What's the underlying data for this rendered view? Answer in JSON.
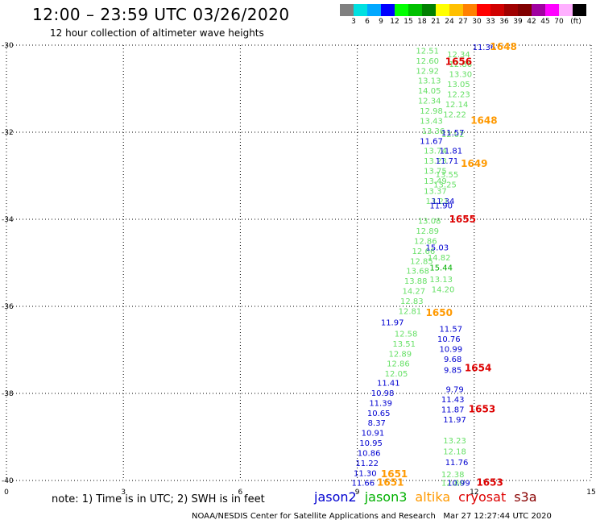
{
  "header": {
    "title": "12:00 – 23:59 UTC 03/26/2020",
    "subtitle": "12 hour collection of altimeter wave heights"
  },
  "colorbar": {
    "colors": [
      "#808080",
      "#00e0e0",
      "#00a8ff",
      "#0000ff",
      "#00ff00",
      "#00c000",
      "#008000",
      "#ffff00",
      "#ffc000",
      "#ff8000",
      "#ff0000",
      "#d00000",
      "#a00000",
      "#800000",
      "#a000a0",
      "#ff00ff",
      "#ffb0ff",
      "#000000"
    ],
    "labels": [
      "3",
      "6",
      "9",
      "12",
      "15",
      "18",
      "21",
      "24",
      "27",
      "30",
      "33",
      "36",
      "39",
      "42",
      "45",
      "70",
      "(ft)"
    ]
  },
  "chart_data": {
    "type": "scatter",
    "title": "12:00 – 23:59 UTC 03/26/2020",
    "subtitle": "12 hour collection of altimeter wave heights",
    "xlim": [
      0,
      15
    ],
    "ylim": [
      -40,
      -30
    ],
    "x_ticks": [
      0,
      3,
      6,
      9,
      12,
      15
    ],
    "y_ticks": [
      -30,
      -32,
      -34,
      -36,
      -38,
      -40
    ],
    "x_tick_labels": [
      "0",
      "3",
      "6",
      "9",
      "12",
      "15"
    ],
    "y_tick_labels": [
      "-30",
      "-32",
      "-34",
      "-36",
      "-38",
      "-40"
    ],
    "grid": true,
    "satellite_colors": {
      "jason2": "#0000d0",
      "jason3": "#00b000",
      "altika": "#ff9900",
      "cryosat": "#dd0000",
      "s3a": "#880000",
      "jason3_light": "#66e066",
      "jason3_cyan": "#00a0e0"
    },
    "series": [
      {
        "name": "jason3",
        "points": [
          {
            "x": 10.8,
            "y": -30.12,
            "v": "12.51"
          },
          {
            "x": 10.8,
            "y": -30.35,
            "v": "12.60"
          },
          {
            "x": 10.8,
            "y": -30.58,
            "v": "12.92"
          },
          {
            "x": 10.85,
            "y": -30.81,
            "v": "13.13"
          },
          {
            "x": 10.85,
            "y": -31.04,
            "v": "14.05"
          },
          {
            "x": 10.85,
            "y": -31.27,
            "v": "12.34"
          },
          {
            "x": 10.9,
            "y": -31.5,
            "v": "12.98"
          },
          {
            "x": 10.9,
            "y": -31.73,
            "v": "13.43"
          },
          {
            "x": 10.95,
            "y": -31.96,
            "v": "13.36"
          },
          {
            "x": 11.0,
            "y": -32.42,
            "v": "13.74"
          },
          {
            "x": 11.0,
            "y": -32.65,
            "v": "13.23"
          },
          {
            "x": 11.0,
            "y": -32.88,
            "v": "13.75"
          },
          {
            "x": 11.0,
            "y": -33.11,
            "v": "13.49"
          },
          {
            "x": 11.0,
            "y": -33.34,
            "v": "13.37"
          },
          {
            "x": 11.05,
            "y": -33.57,
            "v": "13.21"
          },
          {
            "x": 10.85,
            "y": -34.03,
            "v": "13.08"
          },
          {
            "x": 10.8,
            "y": -34.26,
            "v": "12.89"
          },
          {
            "x": 10.75,
            "y": -34.49,
            "v": "12.86"
          },
          {
            "x": 10.7,
            "y": -34.72,
            "v": "12.66"
          },
          {
            "x": 10.65,
            "y": -34.95,
            "v": "12.85"
          },
          {
            "x": 10.55,
            "y": -35.18,
            "v": "13.68"
          },
          {
            "x": 10.5,
            "y": -35.41,
            "v": "13.88"
          },
          {
            "x": 10.45,
            "y": -35.64,
            "v": "14.27"
          },
          {
            "x": 10.4,
            "y": -35.87,
            "v": "12.83"
          },
          {
            "x": 10.35,
            "y": -36.1,
            "v": "12.81"
          },
          {
            "x": 10.25,
            "y": -36.62,
            "v": "12.58"
          },
          {
            "x": 10.2,
            "y": -36.85,
            "v": "13.51"
          },
          {
            "x": 10.1,
            "y": -37.08,
            "v": "12.89"
          },
          {
            "x": 10.05,
            "y": -37.31,
            "v": "12.86"
          },
          {
            "x": 10.0,
            "y": -37.54,
            "v": "12.05"
          },
          {
            "x": 11.6,
            "y": -30.2,
            "v": "12.34"
          },
          {
            "x": 11.65,
            "y": -30.43,
            "v": "12.86"
          },
          {
            "x": 11.65,
            "y": -30.66,
            "v": "13.30"
          },
          {
            "x": 11.6,
            "y": -30.89,
            "v": "13.05"
          },
          {
            "x": 11.6,
            "y": -31.12,
            "v": "12.23"
          },
          {
            "x": 11.55,
            "y": -31.35,
            "v": "12.14"
          },
          {
            "x": 11.5,
            "y": -31.58,
            "v": "12.22"
          },
          {
            "x": 11.45,
            "y": -32.04,
            "v": "12.02"
          },
          {
            "x": 11.3,
            "y": -32.96,
            "v": "13.55"
          },
          {
            "x": 11.25,
            "y": -33.19,
            "v": "13.25"
          },
          {
            "x": 11.1,
            "y": -34.87,
            "v": "14.82"
          },
          {
            "x": 11.15,
            "y": -35.1,
            "v": "15.44"
          },
          {
            "x": 11.15,
            "y": -35.37,
            "v": "13.13"
          },
          {
            "x": 11.2,
            "y": -35.6,
            "v": "14.20"
          },
          {
            "x": 11.5,
            "y": -39.07,
            "v": "13.23"
          },
          {
            "x": 11.5,
            "y": -39.32,
            "v": "12.18"
          },
          {
            "x": 11.45,
            "y": -39.85,
            "v": "12.38"
          },
          {
            "x": 11.45,
            "y": -40.05,
            "v": "12.80"
          }
        ]
      },
      {
        "name": "jason2",
        "points": [
          {
            "x": 12.25,
            "y": -30.04,
            "v": "11.36"
          },
          {
            "x": 10.9,
            "y": -32.19,
            "v": "11.67"
          },
          {
            "x": 11.45,
            "y": -32.0,
            "v": "11.57"
          },
          {
            "x": 11.4,
            "y": -32.42,
            "v": "11.81"
          },
          {
            "x": 11.3,
            "y": -32.65,
            "v": "11.71"
          },
          {
            "x": 11.2,
            "y": -33.57,
            "v": "11.34"
          },
          {
            "x": 11.15,
            "y": -33.68,
            "v": "11.90"
          },
          {
            "x": 11.05,
            "y": -34.64,
            "v": "15.03"
          },
          {
            "x": 9.9,
            "y": -36.36,
            "v": "11.97"
          },
          {
            "x": 11.4,
            "y": -36.51,
            "v": "11.57"
          },
          {
            "x": 11.35,
            "y": -36.74,
            "v": "10.76"
          },
          {
            "x": 11.4,
            "y": -36.97,
            "v": "10.99"
          },
          {
            "x": 11.45,
            "y": -37.2,
            "v": "9.68"
          },
          {
            "x": 11.45,
            "y": -37.45,
            "v": "9.85"
          },
          {
            "x": 11.5,
            "y": -37.9,
            "v": "9.79"
          },
          {
            "x": 11.45,
            "y": -38.13,
            "v": "11.43"
          },
          {
            "x": 11.45,
            "y": -38.36,
            "v": "11.87"
          },
          {
            "x": 11.5,
            "y": -38.59,
            "v": "11.97"
          },
          {
            "x": 11.55,
            "y": -39.57,
            "v": "11.76"
          },
          {
            "x": 11.6,
            "y": -40.05,
            "v": "10.99"
          },
          {
            "x": 9.8,
            "y": -37.75,
            "v": "11.41"
          },
          {
            "x": 9.65,
            "y": -37.98,
            "v": "10.98"
          },
          {
            "x": 9.6,
            "y": -38.21,
            "v": "11.39"
          },
          {
            "x": 9.55,
            "y": -38.44,
            "v": "10.65"
          },
          {
            "x": 9.5,
            "y": -38.67,
            "v": "8.37"
          },
          {
            "x": 9.4,
            "y": -38.9,
            "v": "10.91"
          },
          {
            "x": 9.35,
            "y": -39.13,
            "v": "10.95"
          },
          {
            "x": 9.3,
            "y": -39.36,
            "v": "10.86"
          },
          {
            "x": 9.25,
            "y": -39.59,
            "v": "11.22"
          },
          {
            "x": 9.2,
            "y": -39.82,
            "v": "11.30"
          },
          {
            "x": 9.15,
            "y": -40.05,
            "v": "11.66"
          }
        ]
      },
      {
        "name": "altika",
        "points": [
          {
            "x": 12.75,
            "y": -30.04,
            "v": "1648"
          },
          {
            "x": 12.25,
            "y": -31.73,
            "v": "1648"
          },
          {
            "x": 12.0,
            "y": -32.72,
            "v": "1649"
          },
          {
            "x": 11.1,
            "y": -36.15,
            "v": "1650"
          },
          {
            "x": 9.95,
            "y": -39.85,
            "v": "1651"
          },
          {
            "x": 9.85,
            "y": -40.05,
            "v": "1651"
          }
        ]
      },
      {
        "name": "cryosat",
        "points": [
          {
            "x": 11.6,
            "y": -30.38,
            "v": "1656"
          },
          {
            "x": 11.7,
            "y": -34.0,
            "v": "1655"
          },
          {
            "x": 12.1,
            "y": -37.42,
            "v": "1654"
          },
          {
            "x": 12.2,
            "y": -38.36,
            "v": "1653"
          },
          {
            "x": 12.4,
            "y": -40.05,
            "v": "1653"
          }
        ]
      }
    ],
    "annotations": {
      "note": "note:  1) Time is in UTC; 2) SWH is in feet",
      "legend": [
        "jason2",
        "jason3",
        "altika",
        "cryosat",
        "s3a"
      ],
      "footer_left": "NOAA/NESDIS Center for Satellite Applications and Research",
      "footer_right": "Mar 27 12:27:44 UTC 2020"
    }
  }
}
